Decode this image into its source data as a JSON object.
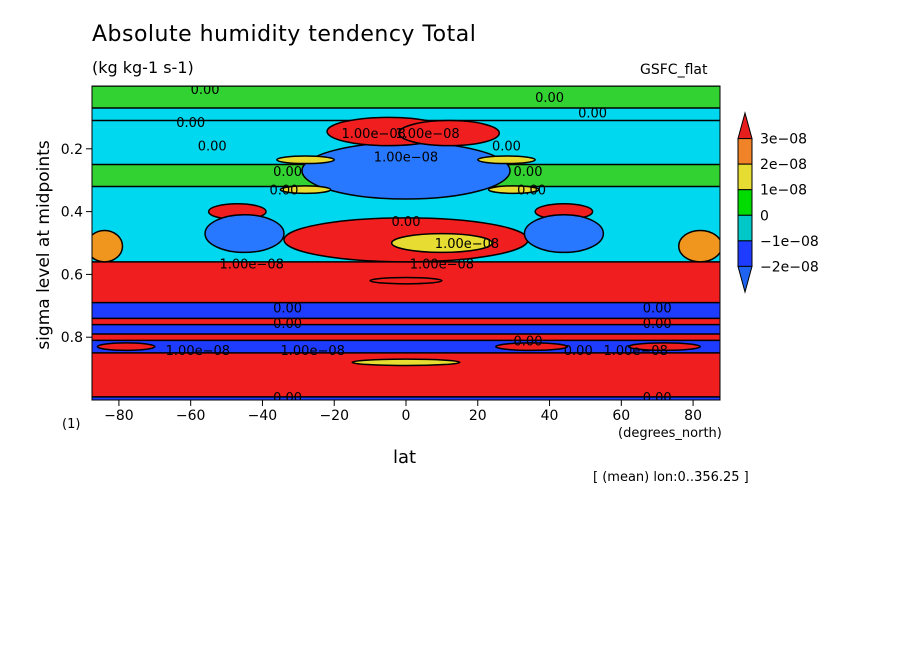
{
  "chart_data": {
    "type": "heatmap",
    "title": "Absolute humidity tendency Total",
    "units": "(kg kg-1 s-1)",
    "model_label": "GSFC_flat",
    "xlabel": "lat",
    "xunits": "(degrees_north)",
    "ylabel": "sigma level at midpoints",
    "ylabel_unit": "(1)",
    "note": "[ (mean) lon:0..356.25 ]",
    "xlim": [
      -87.5,
      87.5
    ],
    "ylim": [
      1.0,
      0.0
    ],
    "x_ticks": [
      -80,
      -60,
      -40,
      -20,
      0,
      20,
      40,
      60,
      80
    ],
    "x_tick_labels": [
      "−80",
      "−60",
      "−40",
      "−20",
      "0",
      "20",
      "40",
      "60",
      "80"
    ],
    "y_ticks": [
      0.2,
      0.4,
      0.6,
      0.8
    ],
    "y_tick_labels": [
      "0.2",
      "0.4",
      "0.6",
      "0.8"
    ],
    "colorbar": {
      "levels": [
        "−2e−08",
        "−1e−08",
        "0",
        "1e−08",
        "2e−08",
        "3e−08"
      ],
      "colors": [
        "#1e64f0",
        "#1e3cff",
        "#00c8c8",
        "#00dc00",
        "#e6dc32",
        "#f08228",
        "#e61e1e"
      ],
      "palette": {
        "darkblue": "#1e3cff",
        "blue": "#2878ff",
        "cyan": "#00d8f0",
        "green": "#32d232",
        "yellow": "#e6dc32",
        "orange": "#f0961e",
        "red": "#f01e1e"
      }
    },
    "bands": [
      {
        "y0": 0.0,
        "y1": 0.07,
        "color": "green"
      },
      {
        "y0": 0.07,
        "y1": 0.11,
        "color": "cyan"
      },
      {
        "y0": 0.11,
        "y1": 0.25,
        "color": "cyan"
      },
      {
        "y0": 0.25,
        "y1": 0.32,
        "color": "green"
      },
      {
        "y0": 0.32,
        "y1": 0.56,
        "color": "cyan"
      },
      {
        "y0": 0.56,
        "y1": 0.69,
        "color": "red"
      },
      {
        "y0": 0.69,
        "y1": 0.74,
        "color": "darkblue"
      },
      {
        "y0": 0.74,
        "y1": 0.76,
        "color": "red"
      },
      {
        "y0": 0.76,
        "y1": 0.79,
        "color": "darkblue"
      },
      {
        "y0": 0.79,
        "y1": 0.81,
        "color": "red"
      },
      {
        "y0": 0.81,
        "y1": 0.85,
        "color": "darkblue"
      },
      {
        "y0": 0.85,
        "y1": 0.99,
        "color": "red"
      },
      {
        "y0": 0.99,
        "y1": 1.0,
        "color": "darkblue"
      }
    ],
    "features": [
      {
        "shape": "ellipse",
        "lat": 0,
        "sigma": 0.27,
        "rx": 29,
        "ry": 0.09,
        "color": "blue"
      },
      {
        "shape": "ellipse",
        "lat": -5,
        "sigma": 0.145,
        "rx": 17,
        "ry": 0.045,
        "color": "red"
      },
      {
        "shape": "ellipse",
        "lat": 12,
        "sigma": 0.15,
        "rx": 14,
        "ry": 0.04,
        "color": "red"
      },
      {
        "shape": "ellipse",
        "lat": 0,
        "sigma": 0.49,
        "rx": 34,
        "ry": 0.07,
        "color": "red"
      },
      {
        "shape": "ellipse",
        "lat": 10,
        "sigma": 0.5,
        "rx": 14,
        "ry": 0.03,
        "color": "yellow"
      },
      {
        "shape": "ellipse",
        "lat": -47,
        "sigma": 0.4,
        "rx": 8,
        "ry": 0.025,
        "color": "red"
      },
      {
        "shape": "ellipse",
        "lat": 44,
        "sigma": 0.4,
        "rx": 8,
        "ry": 0.025,
        "color": "red"
      },
      {
        "shape": "ellipse",
        "lat": -45,
        "sigma": 0.47,
        "rx": 11,
        "ry": 0.06,
        "color": "blue"
      },
      {
        "shape": "ellipse",
        "lat": 44,
        "sigma": 0.47,
        "rx": 11,
        "ry": 0.06,
        "color": "blue"
      },
      {
        "shape": "ellipse",
        "lat": -84,
        "sigma": 0.51,
        "rx": 5,
        "ry": 0.05,
        "color": "orange"
      },
      {
        "shape": "ellipse",
        "lat": 82,
        "sigma": 0.51,
        "rx": 6,
        "ry": 0.05,
        "color": "orange"
      },
      {
        "shape": "ellipse",
        "lat": -28,
        "sigma": 0.235,
        "rx": 8,
        "ry": 0.012,
        "color": "yellow"
      },
      {
        "shape": "ellipse",
        "lat": 28,
        "sigma": 0.235,
        "rx": 8,
        "ry": 0.012,
        "color": "yellow"
      },
      {
        "shape": "ellipse",
        "lat": -28,
        "sigma": 0.33,
        "rx": 7,
        "ry": 0.012,
        "color": "yellow"
      },
      {
        "shape": "ellipse",
        "lat": 30,
        "sigma": 0.33,
        "rx": 7,
        "ry": 0.012,
        "color": "yellow"
      },
      {
        "shape": "ellipse",
        "lat": -78,
        "sigma": 0.83,
        "rx": 8,
        "ry": 0.012,
        "color": "red"
      },
      {
        "shape": "ellipse",
        "lat": 35,
        "sigma": 0.83,
        "rx": 10,
        "ry": 0.012,
        "color": "red"
      },
      {
        "shape": "ellipse",
        "lat": 72,
        "sigma": 0.83,
        "rx": 10,
        "ry": 0.012,
        "color": "red"
      },
      {
        "shape": "ellipse",
        "lat": 0,
        "sigma": 0.88,
        "rx": 15,
        "ry": 0.01,
        "color": "yellow"
      },
      {
        "shape": "ellipse",
        "lat": 0,
        "sigma": 0.62,
        "rx": 10,
        "ry": 0.01,
        "color": "red"
      }
    ],
    "contour_labels": [
      {
        "text": "0.00",
        "lat": -56,
        "sigma": 0.01
      },
      {
        "text": "0.00",
        "lat": 40,
        "sigma": 0.035
      },
      {
        "text": "0.00",
        "lat": -60,
        "sigma": 0.115
      },
      {
        "text": "0.00",
        "lat": 52,
        "sigma": 0.085
      },
      {
        "text": "0.00",
        "lat": -54,
        "sigma": 0.19
      },
      {
        "text": "1.00e−08",
        "lat": -9,
        "sigma": 0.15
      },
      {
        "text": "1.00e−08",
        "lat": 6,
        "sigma": 0.15
      },
      {
        "text": "0.00",
        "lat": 28,
        "sigma": 0.19
      },
      {
        "text": "1.00e−08",
        "lat": 0,
        "sigma": 0.225
      },
      {
        "text": "0.00",
        "lat": -33,
        "sigma": 0.27
      },
      {
        "text": "0.00",
        "lat": 34,
        "sigma": 0.27
      },
      {
        "text": "0.00",
        "lat": -34,
        "sigma": 0.33
      },
      {
        "text": "0.00",
        "lat": 35,
        "sigma": 0.33
      },
      {
        "text": "0.00",
        "lat": 0,
        "sigma": 0.43
      },
      {
        "text": "1.00e−08",
        "lat": 17,
        "sigma": 0.5
      },
      {
        "text": "1.00e−08",
        "lat": -43,
        "sigma": 0.565
      },
      {
        "text": "1.00e−08",
        "lat": 10,
        "sigma": 0.565
      },
      {
        "text": "0.00",
        "lat": -33,
        "sigma": 0.705
      },
      {
        "text": "0.00",
        "lat": 70,
        "sigma": 0.705
      },
      {
        "text": "0.00",
        "lat": -33,
        "sigma": 0.755
      },
      {
        "text": "0.00",
        "lat": 70,
        "sigma": 0.755
      },
      {
        "text": "0.00",
        "lat": 34,
        "sigma": 0.81
      },
      {
        "text": "1.00e−08",
        "lat": -58,
        "sigma": 0.84
      },
      {
        "text": "1.00e−08",
        "lat": -26,
        "sigma": 0.84
      },
      {
        "text": "0.00",
        "lat": 48,
        "sigma": 0.84
      },
      {
        "text": "1.00e−08",
        "lat": 64,
        "sigma": 0.84
      },
      {
        "text": "0.00",
        "lat": -33,
        "sigma": 0.99
      },
      {
        "text": "0.00",
        "lat": 70,
        "sigma": 0.99
      }
    ]
  }
}
